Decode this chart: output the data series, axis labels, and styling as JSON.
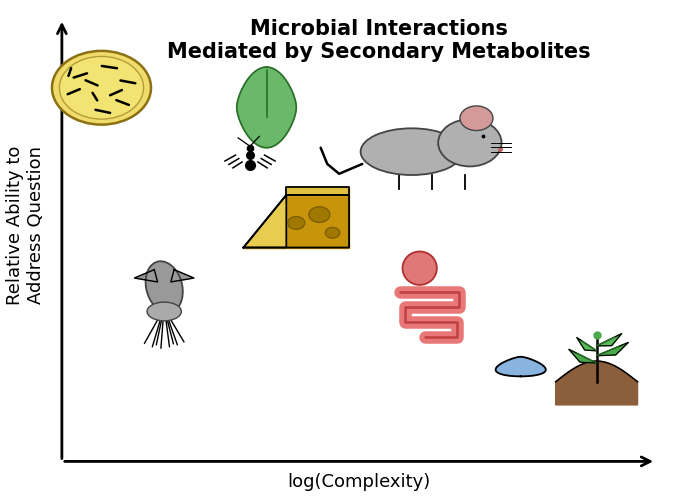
{
  "title_line1": "Microbial Interactions",
  "title_line2": "Mediated by Secondary Metabolites",
  "xlabel": "log(Complexity)",
  "ylabel_line1": "Relative Ability to",
  "ylabel_line2": "Address Question",
  "title_fontsize": 15,
  "axis_label_fontsize": 13,
  "background_color": "#ffffff"
}
